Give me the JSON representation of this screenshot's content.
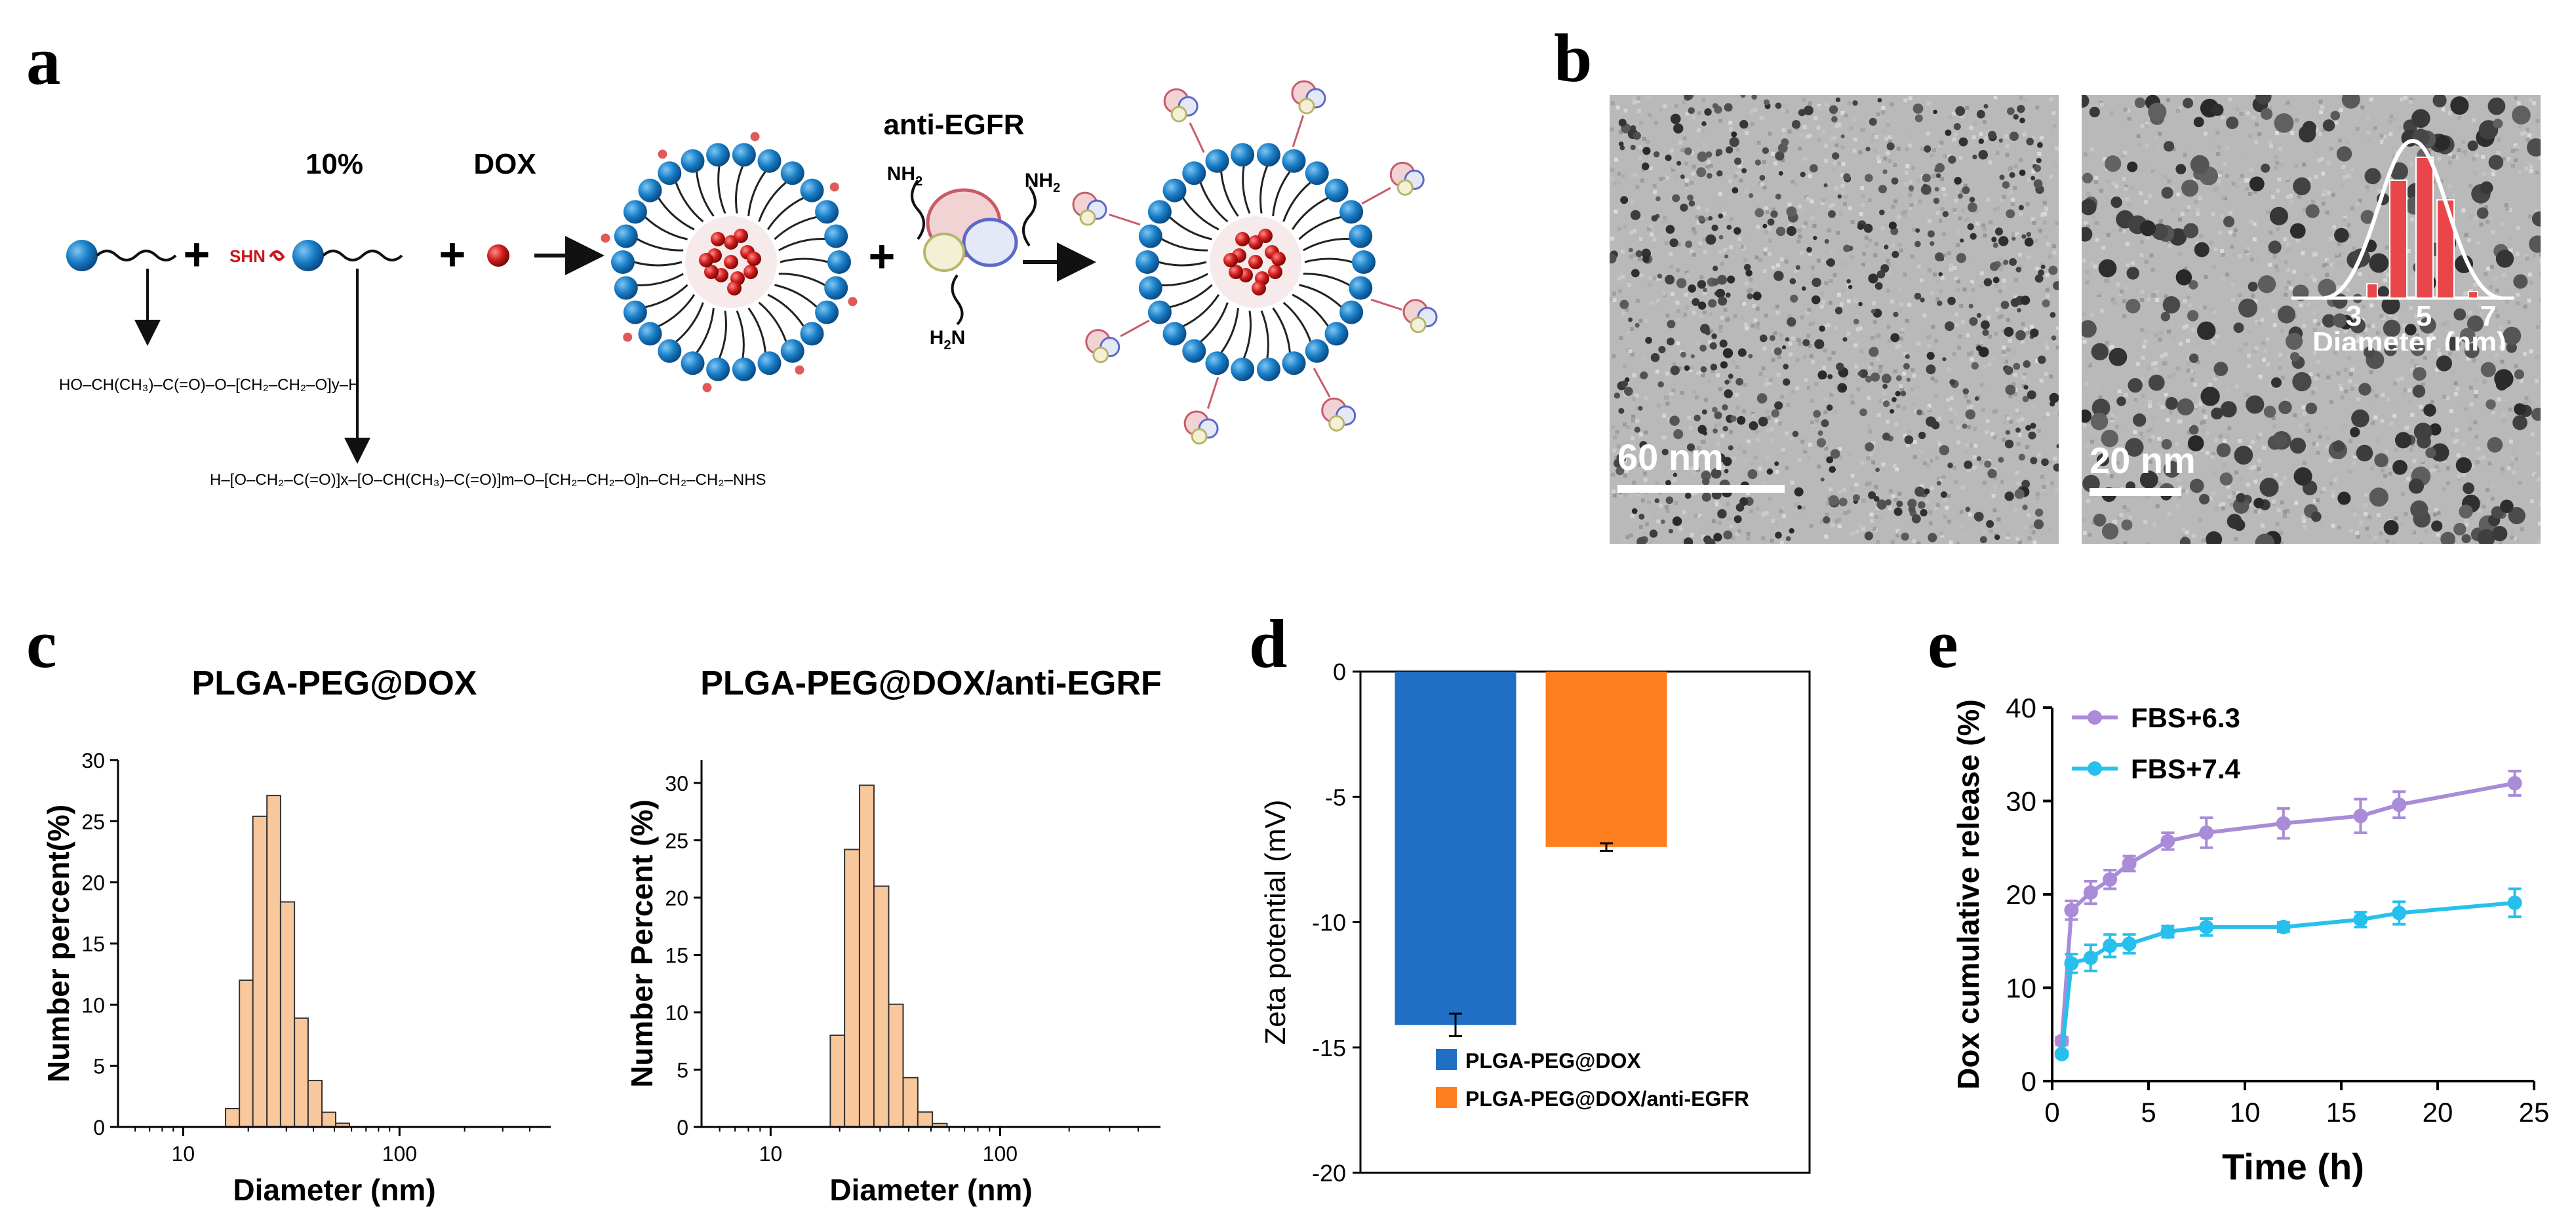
{
  "panels": {
    "a": "a",
    "b": "b",
    "c": "c",
    "d": "d",
    "e": "e"
  },
  "panel_a": {
    "pct_label": "10%",
    "dox_label": "DOX",
    "shn_label": "SHN",
    "antibody_label": "anti-EGFR",
    "nh2_label": "NH",
    "nh2_sub": "2",
    "h2n_label": "H",
    "h2n_sub": "2",
    "h2n_end": "N",
    "plus": "+",
    "formula1": "HO–CH(CH₃)–C(=O)–O–[CH₂–CH₂–O]y–H",
    "formula2": "H–[O–CH₂–C(=O)]x–[O–CH(CH₃)–C(=O)]m–O–[CH₂–CH₂–O]n–CH₂–CH₂–NHS"
  },
  "panel_b": {
    "scale_left": "60 nm",
    "scale_right": "20 nm",
    "inset_ticks": [
      "3",
      "5",
      "7"
    ],
    "inset_xlabel": "Diameter (nm)"
  },
  "chart_data": [
    {
      "type": "bar",
      "panel": "c",
      "title": "PLGA-PEG@DOX",
      "xlabel": "Diameter (nm)",
      "ylabel": "Number percent(%)",
      "xscale": "log",
      "xlim": [
        5,
        500
      ],
      "ylim": [
        0,
        30
      ],
      "xticks": [
        "10",
        "100"
      ],
      "yticks": [
        "0",
        "5",
        "10",
        "15",
        "20",
        "25",
        "30"
      ],
      "bins": [
        15.7,
        18.2,
        21.0,
        24.4,
        28.2,
        32.7,
        37.8,
        43.8,
        50.7
      ],
      "values": [
        1.5,
        12.0,
        25.4,
        27.1,
        18.4,
        8.9,
        3.8,
        1.2,
        0.3
      ],
      "color": "#f8c79c"
    },
    {
      "type": "bar",
      "panel": "c",
      "title": "PLGA-PEG@DOX/anti-EGRF",
      "xlabel": "Diameter (nm)",
      "ylabel": "Number Percent (%)",
      "xscale": "log",
      "xlim": [
        5,
        500
      ],
      "ylim": [
        0,
        32
      ],
      "xticks": [
        "10",
        "100"
      ],
      "yticks": [
        "0",
        "5",
        "10",
        "15",
        "20",
        "25",
        "30"
      ],
      "bins": [
        18.2,
        21.0,
        24.4,
        28.2,
        32.7,
        37.8,
        43.8,
        50.7
      ],
      "values": [
        8.0,
        24.2,
        29.8,
        21.0,
        10.7,
        4.3,
        1.3,
        0.3
      ],
      "color": "#f8c79c"
    },
    {
      "type": "bar",
      "panel": "d",
      "ylabel": "Zeta potential (mV)",
      "ylim": [
        -20,
        0
      ],
      "yticks": [
        "0",
        "-5",
        "-10",
        "-15",
        "-20"
      ],
      "categories": [
        "PLGA-PEG@DOX",
        "PLGA-PEG@DOX/anti-EGFR"
      ],
      "values": [
        -14.1,
        -7.0
      ],
      "errors": [
        0.45,
        0.15
      ],
      "colors": [
        "#1f6fc5",
        "#ff7f1e"
      ],
      "legend": "bottom"
    },
    {
      "type": "line",
      "panel": "e",
      "xlabel": "Time (h)",
      "ylabel": "Dox cumulative release (%)",
      "xlim": [
        0,
        25
      ],
      "ylim": [
        0,
        40
      ],
      "xticks": [
        "0",
        "5",
        "10",
        "15",
        "20",
        "25"
      ],
      "yticks": [
        "0",
        "10",
        "20",
        "30",
        "40"
      ],
      "legend": "top-left",
      "series": [
        {
          "name": "FBS+6.3",
          "color": "#a98bd8",
          "x": [
            0.5,
            1,
            2,
            3,
            4,
            6,
            8,
            12,
            16,
            18,
            24
          ],
          "y": [
            4.3,
            18.3,
            20.2,
            21.6,
            23.3,
            25.7,
            26.6,
            27.6,
            28.4,
            29.6,
            31.9
          ],
          "err": [
            0.4,
            1.0,
            1.2,
            1.0,
            0.8,
            0.9,
            1.6,
            1.6,
            1.8,
            1.4,
            1.3
          ]
        },
        {
          "name": "FBS+7.4",
          "color": "#27c0ec",
          "x": [
            0.5,
            1,
            2,
            3,
            4,
            6,
            8,
            12,
            16,
            18,
            24
          ],
          "y": [
            2.9,
            12.6,
            13.2,
            14.5,
            14.7,
            16.0,
            16.5,
            16.5,
            17.3,
            18.0,
            19.1
          ],
          "err": [
            0.3,
            1.0,
            1.4,
            1.2,
            1.0,
            0.6,
            0.9,
            0.5,
            0.8,
            1.2,
            1.5
          ]
        }
      ]
    }
  ]
}
